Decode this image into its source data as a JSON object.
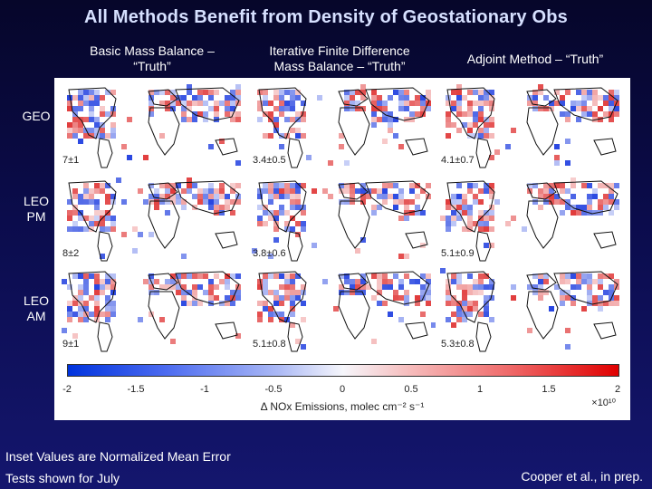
{
  "title": "All Methods Benefit from Density of Geostationary Obs",
  "columns": [
    {
      "line1": "Basic Mass Balance –",
      "line2": "“Truth”"
    },
    {
      "line1": "Iterative Finite Difference",
      "line2": "Mass Balance – “Truth”"
    },
    {
      "line1": "Adjoint Method – “Truth”",
      "line2": ""
    }
  ],
  "rows": [
    {
      "line1": "GEO",
      "line2": ""
    },
    {
      "line1": "LEO",
      "line2": "PM"
    },
    {
      "line1": "LEO",
      "line2": "AM"
    }
  ],
  "insets": [
    [
      "7±1",
      "3.4±0.5",
      "4.1±0.7"
    ],
    [
      "8±2",
      "3.8±0.6",
      "5.1±0.9"
    ],
    [
      "9±1",
      "5.1±0.8",
      "5.3±0.8"
    ]
  ],
  "colorbar": {
    "ticks": [
      "-2",
      "-1.5",
      "-1",
      "-0.5",
      "0",
      "0.5",
      "1",
      "1.5",
      "2"
    ],
    "tick_values": [
      -2,
      -1.5,
      -1,
      -0.5,
      0,
      0.5,
      1,
      1.5,
      2
    ],
    "range": [
      -2,
      2
    ],
    "label": "Δ NOx Emissions, molec cm⁻² s⁻¹",
    "scale": "×10¹⁰",
    "colors": {
      "low": "#0033dd",
      "mid": "#f6f6fb",
      "high": "#e00000"
    }
  },
  "footer": {
    "line1": "Inset Values are Normalized Mean Error",
    "line2": "Tests shown for July",
    "citation": "Cooper et al., in prep."
  }
}
